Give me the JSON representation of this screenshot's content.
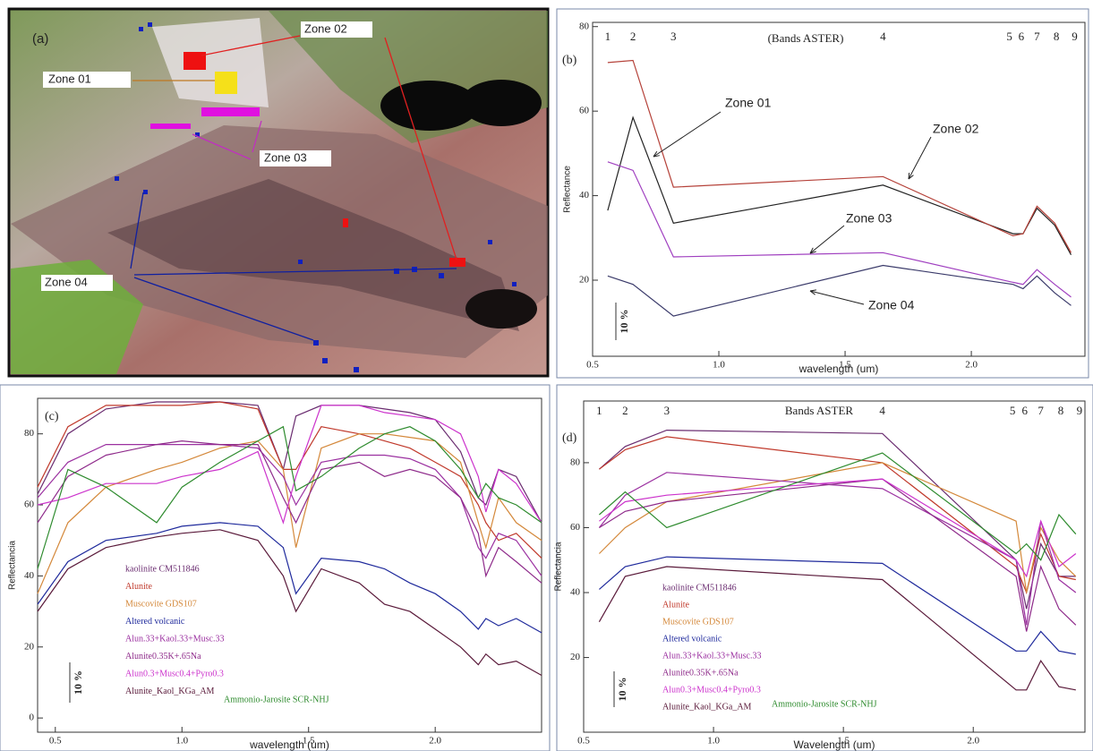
{
  "image_panel": {
    "panel_label": "(a)",
    "labels": [
      "Zone 01",
      "Zone 02",
      "Zone 03",
      "Zone 04"
    ]
  },
  "chart_data": [
    {
      "type": "line",
      "panel_label": "(b)",
      "band_title": "(Bands ASTER)",
      "band_labels": [
        "1",
        "2",
        "3",
        "4",
        "5",
        "6",
        "7",
        "8",
        "9"
      ],
      "y_label": "Reflectance",
      "x_label": "wavelength (um)",
      "scale_label": "10 %",
      "x": [
        0.56,
        0.66,
        0.82,
        1.65,
        2.165,
        2.205,
        2.26,
        2.33,
        2.395
      ],
      "xlim": [
        0.5,
        2.45
      ],
      "ylim": [
        2,
        81
      ],
      "xticks": [
        0.5,
        {
          "value": 1,
          "label": "1.0"
        },
        1.5,
        {
          "value": 2,
          "label": "2.0"
        }
      ],
      "yticks": [
        20,
        40,
        60,
        80
      ],
      "series": [
        {
          "name": "Zone 01",
          "color": "#222222",
          "values": [
            36.5,
            58.5,
            33.5,
            42.5,
            31,
            31,
            37,
            33,
            26
          ]
        },
        {
          "name": "Zone 02",
          "color": "#b5423a",
          "values": [
            71.5,
            72,
            42,
            44.5,
            30.5,
            31,
            37.5,
            33.5,
            26.5
          ]
        },
        {
          "name": "Zone 03",
          "color": "#a040c0",
          "values": [
            48,
            46,
            25.5,
            26.5,
            19.5,
            19,
            22.5,
            19,
            16
          ]
        },
        {
          "name": "Zone 04",
          "color": "#3a3a6a",
          "values": [
            21,
            19,
            11.5,
            23.5,
            19,
            18,
            21,
            17,
            14
          ]
        }
      ]
    },
    {
      "type": "line",
      "panel_label": "(c)",
      "y_label": "Reflectancia",
      "x_label": "wavelength (um)",
      "scale_label": "10 %",
      "x": [
        0.43,
        0.55,
        0.7,
        0.9,
        1.0,
        1.15,
        1.3,
        1.4,
        1.45,
        1.55,
        1.7,
        1.8,
        1.9,
        2.0,
        2.1,
        2.17,
        2.2,
        2.25,
        2.32,
        2.42
      ],
      "xlim": [
        0.43,
        2.42
      ],
      "ylim": [
        -4,
        90
      ],
      "xticks": [
        0.5,
        {
          "value": 1,
          "label": "1.0"
        },
        1.5,
        {
          "value": 2,
          "label": "2.0"
        }
      ],
      "yticks": [
        0,
        20,
        40,
        60,
        80
      ],
      "series": [
        {
          "name": "kaolinite CM511846",
          "color": "#6a2c70",
          "values": [
            63,
            80,
            87,
            89,
            89,
            89,
            88,
            70,
            85,
            88,
            88,
            87,
            86,
            84,
            75,
            62,
            60,
            70,
            68,
            55
          ]
        },
        {
          "name": "Alunite",
          "color": "#c0392b",
          "values": [
            65,
            82,
            88,
            88,
            88,
            89,
            87,
            70,
            70,
            82,
            80,
            78,
            76,
            72,
            68,
            60,
            55,
            50,
            52,
            45
          ]
        },
        {
          "name": "Muscovite GDS107",
          "color": "#d4883a",
          "values": [
            35,
            55,
            65,
            70,
            72,
            76,
            78,
            70,
            48,
            76,
            80,
            80,
            79,
            78,
            72,
            55,
            48,
            62,
            55,
            50
          ]
        },
        {
          "name": "Altered volcanic",
          "color": "#1f2a9c",
          "values": [
            32,
            44,
            50,
            52,
            54,
            55,
            54,
            48,
            35,
            45,
            44,
            42,
            38,
            35,
            30,
            25,
            28,
            26,
            28,
            24
          ]
        },
        {
          "name": "Alun.33+Kaol.33+Musc.33",
          "color": "#9b30a0",
          "values": [
            62,
            72,
            77,
            77,
            77,
            77,
            76,
            68,
            60,
            72,
            74,
            74,
            73,
            70,
            62,
            48,
            45,
            52,
            50,
            40
          ]
        },
        {
          "name": "Alunite0.35K+.65Na",
          "color": "#8e2a8a",
          "values": [
            55,
            68,
            74,
            77,
            78,
            77,
            77,
            62,
            55,
            70,
            72,
            68,
            70,
            68,
            62,
            52,
            40,
            48,
            44,
            38
          ]
        },
        {
          "name": "Alun0.3+Musc0.4+Pyro0.3",
          "color": "#cc33cc",
          "values": [
            60,
            62,
            66,
            66,
            68,
            70,
            75,
            55,
            68,
            88,
            88,
            86,
            85,
            84,
            80,
            68,
            58,
            70,
            66,
            55
          ]
        },
        {
          "name": "Alunite_Kaol_KGa_AM",
          "color": "#5a1a3a",
          "values": [
            30,
            42,
            48,
            51,
            52,
            53,
            50,
            40,
            30,
            42,
            38,
            32,
            30,
            25,
            20,
            15,
            18,
            15,
            16,
            12
          ]
        },
        {
          "name": "Ammonio-Jarosite SCR-NHJ",
          "color": "#2e8b2e",
          "values": [
            42,
            70,
            65,
            55,
            65,
            72,
            78,
            82,
            64,
            68,
            76,
            80,
            82,
            78,
            70,
            62,
            66,
            62,
            60,
            55
          ]
        }
      ]
    },
    {
      "type": "line",
      "panel_label": "(d)",
      "band_title": "Bands ASTER",
      "band_labels": [
        "1",
        "2",
        "3",
        "4",
        "5",
        "6",
        "7",
        "8",
        "9"
      ],
      "y_label": "Reflectancia",
      "x_label": "Wavelength (um)",
      "scale_label": "10 %",
      "x": [
        0.56,
        0.66,
        0.82,
        1.65,
        2.165,
        2.205,
        2.26,
        2.33,
        2.395
      ],
      "xlim": [
        0.5,
        2.43
      ],
      "ylim": [
        -3,
        99
      ],
      "xticks": [
        0.5,
        {
          "value": 1,
          "label": "1.0"
        },
        1.5,
        {
          "value": 2,
          "label": "2.0"
        }
      ],
      "yticks": [
        20,
        40,
        60,
        80
      ],
      "series": [
        {
          "name": "kaolinite CM511846",
          "color": "#6a2c70",
          "values": [
            78,
            85,
            90,
            89,
            50,
            35,
            55,
            45,
            45
          ]
        },
        {
          "name": "Alunite",
          "color": "#c0392b",
          "values": [
            78,
            84,
            88,
            80,
            48,
            40,
            58,
            45,
            44
          ]
        },
        {
          "name": "Muscovite GDS107",
          "color": "#d4883a",
          "values": [
            52,
            60,
            68,
            80,
            62,
            40,
            60,
            50,
            45
          ]
        },
        {
          "name": "Altered volcanic",
          "color": "#1f2a9c",
          "values": [
            41,
            48,
            51,
            49,
            22,
            22,
            28,
            22,
            21
          ]
        },
        {
          "name": "Alun.33+Kaol.33+Musc.33",
          "color": "#9b30a0",
          "values": [
            60,
            70,
            77,
            72,
            50,
            30,
            62,
            44,
            40
          ]
        },
        {
          "name": "Alunite0.35K+.65Na",
          "color": "#8e2a8a",
          "values": [
            60,
            65,
            68,
            75,
            45,
            28,
            48,
            35,
            30
          ]
        },
        {
          "name": "Alun0.3+Musc0.4+Pyro0.3",
          "color": "#cc33cc",
          "values": [
            62,
            68,
            70,
            75,
            50,
            45,
            62,
            48,
            52
          ]
        },
        {
          "name": "Alunite_Kaol_KGa_AM",
          "color": "#5a1a3a",
          "values": [
            31,
            45,
            48,
            44,
            10,
            10,
            19,
            11,
            10
          ]
        },
        {
          "name": "Ammonio-Jarosite SCR-NHJ",
          "color": "#2e8b2e",
          "values": [
            64,
            71,
            60,
            83,
            52,
            55,
            50,
            64,
            58
          ]
        }
      ]
    }
  ]
}
